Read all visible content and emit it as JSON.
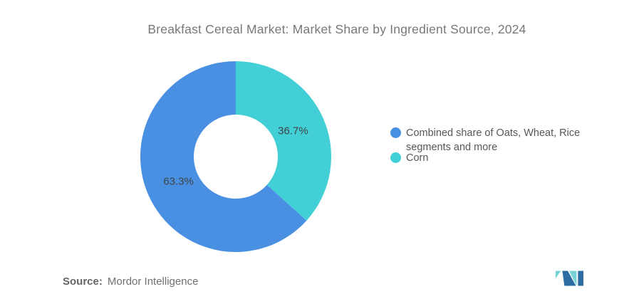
{
  "chart_data": {
    "type": "pie",
    "subtype": "donut",
    "title": "Breakfast Cereal Market: Market Share by Ingredient Source, 2024",
    "categories": [
      "Combined share of Oats, Wheat, Rice segments and more",
      "Corn"
    ],
    "values": [
      63.3,
      36.7
    ],
    "unit": "%",
    "start_angle_deg": 0,
    "direction": "clockwise",
    "inner_radius_ratio": 0.44,
    "slices_draw_order": [
      {
        "name": "Corn",
        "value": 36.7,
        "label": "36.7%",
        "color": "#43CFD6"
      },
      {
        "name": "Combined share of Oats, Wheat, Rice segments and more",
        "value": 63.3,
        "label": "63.3%",
        "color": "#4A90E2"
      }
    ],
    "legend_position": "right",
    "legend": [
      {
        "label": "Combined share of Oats, Wheat, Rice segments and more",
        "color": "#4A90E2"
      },
      {
        "label": "Corn",
        "color": "#43CFD6"
      }
    ],
    "label_color": "#3F4447",
    "title_color": "#77787B"
  },
  "source": {
    "label": "Source:",
    "value": "Mordor Intelligence"
  },
  "logo": {
    "alt": "Mordor Intelligence logo",
    "blue": "#2D6CA2",
    "teal": "#76D4D8"
  }
}
